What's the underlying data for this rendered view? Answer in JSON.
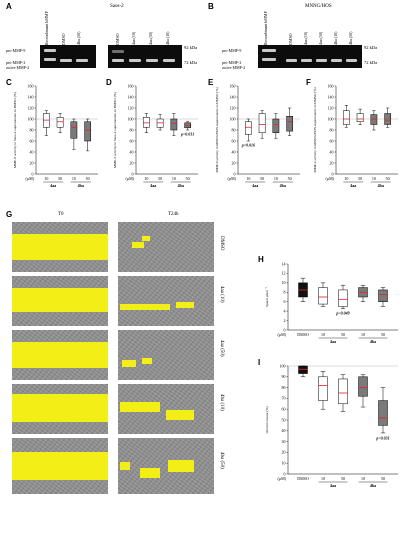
{
  "panel_labels": {
    "A": "A",
    "B": "B",
    "C": "C",
    "D": "D",
    "E": "E",
    "F": "F",
    "G": "G",
    "H": "H",
    "I": "I"
  },
  "gel_a": {
    "title": "Saos-2",
    "lanes_left": [
      "Recombinant hMMP",
      "DMSO",
      "4ba (50)"
    ],
    "lanes_right": [
      "DMSO",
      "4aa (10)",
      "4aa (50)",
      "4ba (10)"
    ],
    "band_labels": [
      "pro-MMP-9",
      "pro-MMP-2",
      "active MMP-2"
    ],
    "kda": [
      "92 kDa",
      "72 kDa"
    ]
  },
  "gel_b": {
    "title": "MNNG/HOS",
    "lanes_left": [
      "Recombinant hMMP"
    ],
    "lanes_right": [
      "DMSO",
      "4aa (10)",
      "4aa (50)",
      "4ba (10)",
      "4ba (50)"
    ],
    "band_labels": [
      "pro-MMP-9",
      "pro-MMP-2",
      "active MMP-2"
    ],
    "kda": [
      "92 kDa",
      "72 kDa"
    ]
  },
  "scratch": {
    "col_t0": "T0",
    "col_t24": "T24h",
    "rows": [
      "DMSO",
      "4aa (10)",
      "4aa (50)",
      "4ba (10)",
      "4ba (50)"
    ]
  },
  "chart_data": [
    {
      "panel": "C",
      "type": "box",
      "ylabel": "MMP-9 activity in Saos-2 supernatants vs DMSO (%)",
      "ylim": [
        0,
        160
      ],
      "yticks": [
        "0",
        "20",
        "40",
        "60",
        "80",
        "100",
        "120",
        "140",
        "160"
      ],
      "unit_label": "(µM)",
      "categories": [
        "10",
        "50",
        "10",
        "50"
      ],
      "groups": [
        "4aa",
        "4ba"
      ],
      "boxes": [
        {
          "min": 70,
          "q1": 85,
          "median": 98,
          "q3": 110,
          "max": 115,
          "fill": "white"
        },
        {
          "min": 75,
          "q1": 85,
          "median": 95,
          "q3": 103,
          "max": 110,
          "fill": "white"
        },
        {
          "min": 45,
          "q1": 65,
          "median": 85,
          "q3": 95,
          "max": 100,
          "fill": "grey"
        },
        {
          "min": 42,
          "q1": 60,
          "median": 80,
          "q3": 95,
          "max": 100,
          "fill": "grey"
        }
      ]
    },
    {
      "panel": "D",
      "type": "box",
      "ylabel": "MMP-2 activity in Saos-2 supernatants vs DMSO (%)",
      "ylim": [
        0,
        160
      ],
      "yticks": [
        "0",
        "20",
        "40",
        "60",
        "80",
        "100",
        "120",
        "140",
        "160"
      ],
      "unit_label": "(µM)",
      "categories": [
        "10",
        "50",
        "10",
        "50"
      ],
      "groups": [
        "4aa",
        "4ba"
      ],
      "annotation": "p=0.031",
      "boxes": [
        {
          "min": 75,
          "q1": 85,
          "median": 93,
          "q3": 103,
          "max": 110,
          "fill": "white"
        },
        {
          "min": 80,
          "q1": 85,
          "median": 93,
          "q3": 100,
          "max": 108,
          "fill": "white"
        },
        {
          "min": 70,
          "q1": 80,
          "median": 92,
          "q3": 100,
          "max": 110,
          "fill": "grey"
        },
        {
          "min": 80,
          "q1": 84,
          "median": 88,
          "q3": 93,
          "max": 95,
          "fill": "grey"
        }
      ]
    },
    {
      "panel": "E",
      "type": "box",
      "ylabel": "MMP-9 activity in MNNG/HOS supernatants vs DMSO (%)",
      "ylim": [
        0,
        160
      ],
      "yticks": [
        "0",
        "20",
        "40",
        "60",
        "80",
        "100",
        "120",
        "140",
        "160"
      ],
      "unit_label": "(µM)",
      "categories": [
        "10",
        "50",
        "10",
        "50"
      ],
      "groups": [
        "4aa",
        "4ba"
      ],
      "annotation": "p=0.016",
      "boxes": [
        {
          "min": 60,
          "q1": 72,
          "median": 85,
          "q3": 95,
          "max": 100,
          "fill": "white"
        },
        {
          "min": 65,
          "q1": 75,
          "median": 90,
          "q3": 110,
          "max": 115,
          "fill": "white"
        },
        {
          "min": 65,
          "q1": 75,
          "median": 90,
          "q3": 100,
          "max": 110,
          "fill": "grey"
        },
        {
          "min": 70,
          "q1": 78,
          "median": 95,
          "q3": 105,
          "max": 120,
          "fill": "grey"
        }
      ]
    },
    {
      "panel": "F",
      "type": "box",
      "ylabel": "MMP-2 activity in MNNG/HOS supernatants vs DMSO (%)",
      "ylim": [
        0,
        160
      ],
      "yticks": [
        "0",
        "20",
        "40",
        "60",
        "80",
        "100",
        "120",
        "140",
        "160"
      ],
      "unit_label": "(µM)",
      "categories": [
        "10",
        "50",
        "10",
        "50"
      ],
      "groups": [
        "4aa",
        "4ba"
      ],
      "boxes": [
        {
          "min": 85,
          "q1": 90,
          "median": 100,
          "q3": 115,
          "max": 125,
          "fill": "white"
        },
        {
          "min": 90,
          "q1": 95,
          "median": 100,
          "q3": 110,
          "max": 118,
          "fill": "white"
        },
        {
          "min": 80,
          "q1": 90,
          "median": 100,
          "q3": 108,
          "max": 115,
          "fill": "grey"
        },
        {
          "min": 85,
          "q1": 90,
          "median": 98,
          "q3": 110,
          "max": 120,
          "fill": "grey"
        }
      ]
    },
    {
      "panel": "H",
      "type": "box",
      "ylabel": "Speed µm.h⁻¹",
      "ylim": [
        0,
        14
      ],
      "yticks": [
        "0",
        "2",
        "4",
        "6",
        "8",
        "10",
        "12",
        "14"
      ],
      "unit_label": "(µM)",
      "categories": [
        "DMSO",
        "10",
        "50",
        "10",
        "50"
      ],
      "groups": [
        "4aa",
        "4ba"
      ],
      "annotation": "p=0.049",
      "boxes": [
        {
          "min": 6,
          "q1": 7,
          "median": 8.5,
          "q3": 10,
          "max": 11,
          "fill": "black"
        },
        {
          "min": 5,
          "q1": 5.5,
          "median": 7,
          "q3": 9,
          "max": 10,
          "fill": "white"
        },
        {
          "min": 4.5,
          "q1": 5,
          "median": 6.5,
          "q3": 8.5,
          "max": 9.5,
          "fill": "white"
        },
        {
          "min": 6,
          "q1": 7,
          "median": 8,
          "q3": 9,
          "max": 9.5,
          "fill": "grey"
        },
        {
          "min": 5,
          "q1": 6,
          "median": 7.5,
          "q3": 8.5,
          "max": 9,
          "fill": "grey"
        }
      ]
    },
    {
      "panel": "I",
      "type": "box",
      "ylabel": "Wound closure (%)",
      "ylim": [
        0,
        100
      ],
      "yticks": [
        "0",
        "10",
        "20",
        "30",
        "40",
        "50",
        "60",
        "70",
        "80",
        "90",
        "100"
      ],
      "unit_label": "(µM)",
      "categories": [
        "DMSO",
        "10",
        "50",
        "10",
        "50"
      ],
      "groups": [
        "4aa",
        "4ba"
      ],
      "annotation": "p=0.031",
      "boxes": [
        {
          "min": 90,
          "q1": 93,
          "median": 97,
          "q3": 100,
          "max": 100,
          "fill": "black"
        },
        {
          "min": 60,
          "q1": 68,
          "median": 82,
          "q3": 90,
          "max": 95,
          "fill": "white"
        },
        {
          "min": 58,
          "q1": 65,
          "median": 75,
          "q3": 88,
          "max": 92,
          "fill": "white"
        },
        {
          "min": 62,
          "q1": 72,
          "median": 80,
          "q3": 90,
          "max": 92,
          "fill": "grey"
        },
        {
          "min": 38,
          "q1": 45,
          "median": 52,
          "q3": 68,
          "max": 80,
          "fill": "grey"
        }
      ]
    }
  ]
}
